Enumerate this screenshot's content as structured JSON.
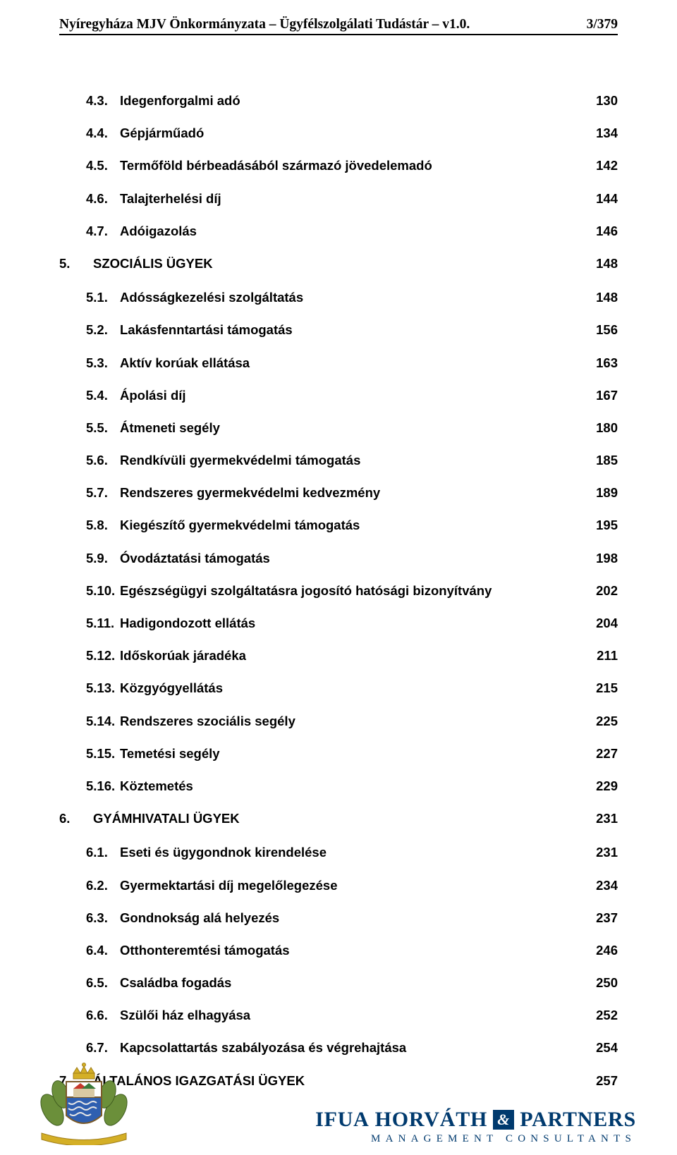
{
  "header": {
    "left": "Nyíregyháza MJV Önkormányzata – Ügyfélszolgálati Tudástár – v1.0.",
    "right": "3/379"
  },
  "toc": [
    {
      "level": 1,
      "num": "4.3.",
      "title": "Idegenforgalmi adó",
      "page": "130"
    },
    {
      "level": 1,
      "num": "4.4.",
      "title": "Gépjárműadó",
      "page": "134"
    },
    {
      "level": 1,
      "num": "4.5.",
      "title": "Termőföld bérbeadásából származó jövedelemadó",
      "page": "142"
    },
    {
      "level": 1,
      "num": "4.6.",
      "title": "Talajterhelési díj",
      "page": "144"
    },
    {
      "level": 1,
      "num": "4.7.",
      "title": "Adóigazolás",
      "page": "146"
    },
    {
      "level": 0,
      "num": "5.",
      "title": "SZOCIÁLIS ÜGYEK",
      "page": "148"
    },
    {
      "level": 1,
      "num": "5.1.",
      "title": "Adósságkezelési szolgáltatás",
      "page": "148"
    },
    {
      "level": 1,
      "num": "5.2.",
      "title": "Lakásfenntartási támogatás",
      "page": "156"
    },
    {
      "level": 1,
      "num": "5.3.",
      "title": "Aktív korúak ellátása",
      "page": "163"
    },
    {
      "level": 1,
      "num": "5.4.",
      "title": "Ápolási díj",
      "page": "167"
    },
    {
      "level": 1,
      "num": "5.5.",
      "title": "Átmeneti segély",
      "page": "180"
    },
    {
      "level": 1,
      "num": "5.6.",
      "title": "Rendkívüli gyermekvédelmi támogatás",
      "page": "185"
    },
    {
      "level": 1,
      "num": "5.7.",
      "title": "Rendszeres gyermekvédelmi kedvezmény",
      "page": "189"
    },
    {
      "level": 1,
      "num": "5.8.",
      "title": "Kiegészítő gyermekvédelmi támogatás",
      "page": "195"
    },
    {
      "level": 1,
      "num": "5.9.",
      "title": "Óvodáztatási támogatás",
      "page": "198"
    },
    {
      "level": 1,
      "num": "5.10.",
      "title": "Egészségügyi szolgáltatásra jogosító hatósági bizonyítvány",
      "page": "202"
    },
    {
      "level": 1,
      "num": "5.11.",
      "title": "Hadigondozott ellátás",
      "page": "204"
    },
    {
      "level": 1,
      "num": "5.12.",
      "title": "Időskorúak járadéka",
      "page": "211"
    },
    {
      "level": 1,
      "num": "5.13.",
      "title": "Közgyógyellátás",
      "page": "215"
    },
    {
      "level": 1,
      "num": "5.14.",
      "title": "Rendszeres szociális segély",
      "page": "225"
    },
    {
      "level": 1,
      "num": "5.15.",
      "title": "Temetési segély",
      "page": "227"
    },
    {
      "level": 1,
      "num": "5.16.",
      "title": "Köztemetés",
      "page": "229"
    },
    {
      "level": 0,
      "num": "6.",
      "title": "GYÁMHIVATALI ÜGYEK",
      "page": "231"
    },
    {
      "level": 1,
      "num": "6.1.",
      "title": "Eseti és ügygondnok kirendelése",
      "page": "231"
    },
    {
      "level": 1,
      "num": "6.2.",
      "title": "Gyermektartási díj megelőlegezése",
      "page": "234"
    },
    {
      "level": 1,
      "num": "6.3.",
      "title": "Gondnokság alá helyezés",
      "page": "237"
    },
    {
      "level": 1,
      "num": "6.4.",
      "title": "Otthonteremtési támogatás",
      "page": "246"
    },
    {
      "level": 1,
      "num": "6.5.",
      "title": "Családba fogadás",
      "page": "250"
    },
    {
      "level": 1,
      "num": "6.6.",
      "title": "Szülői ház elhagyása",
      "page": "252"
    },
    {
      "level": 1,
      "num": "6.7.",
      "title": "Kapcsolattartás szabályozása és végrehajtása",
      "page": "254"
    },
    {
      "level": 0,
      "num": "7.",
      "title": "ÁLTALÁNOS IGAZGATÁSI ÜGYEK",
      "page": "257"
    }
  ],
  "footer": {
    "crest_colors": {
      "leaves": "#6b8f3a",
      "leaves_dark": "#3f5c1f",
      "ribbon": "#d4af26",
      "shield_top": "#ffffff",
      "shield_bottom": "#2f5fb0",
      "shield_border": "#7a5a2a",
      "crown": "#d4af26",
      "roof1": "#c6392b",
      "roof2": "#3a7a3a",
      "wall": "#d9c9a3"
    },
    "partner": {
      "name1": "IFUA",
      "name2": "HORVÁTH",
      "amp": "&",
      "name3": "PARTNERS",
      "tagline": "MANAGEMENT CONSULTANTS",
      "color": "#003a6e"
    }
  }
}
